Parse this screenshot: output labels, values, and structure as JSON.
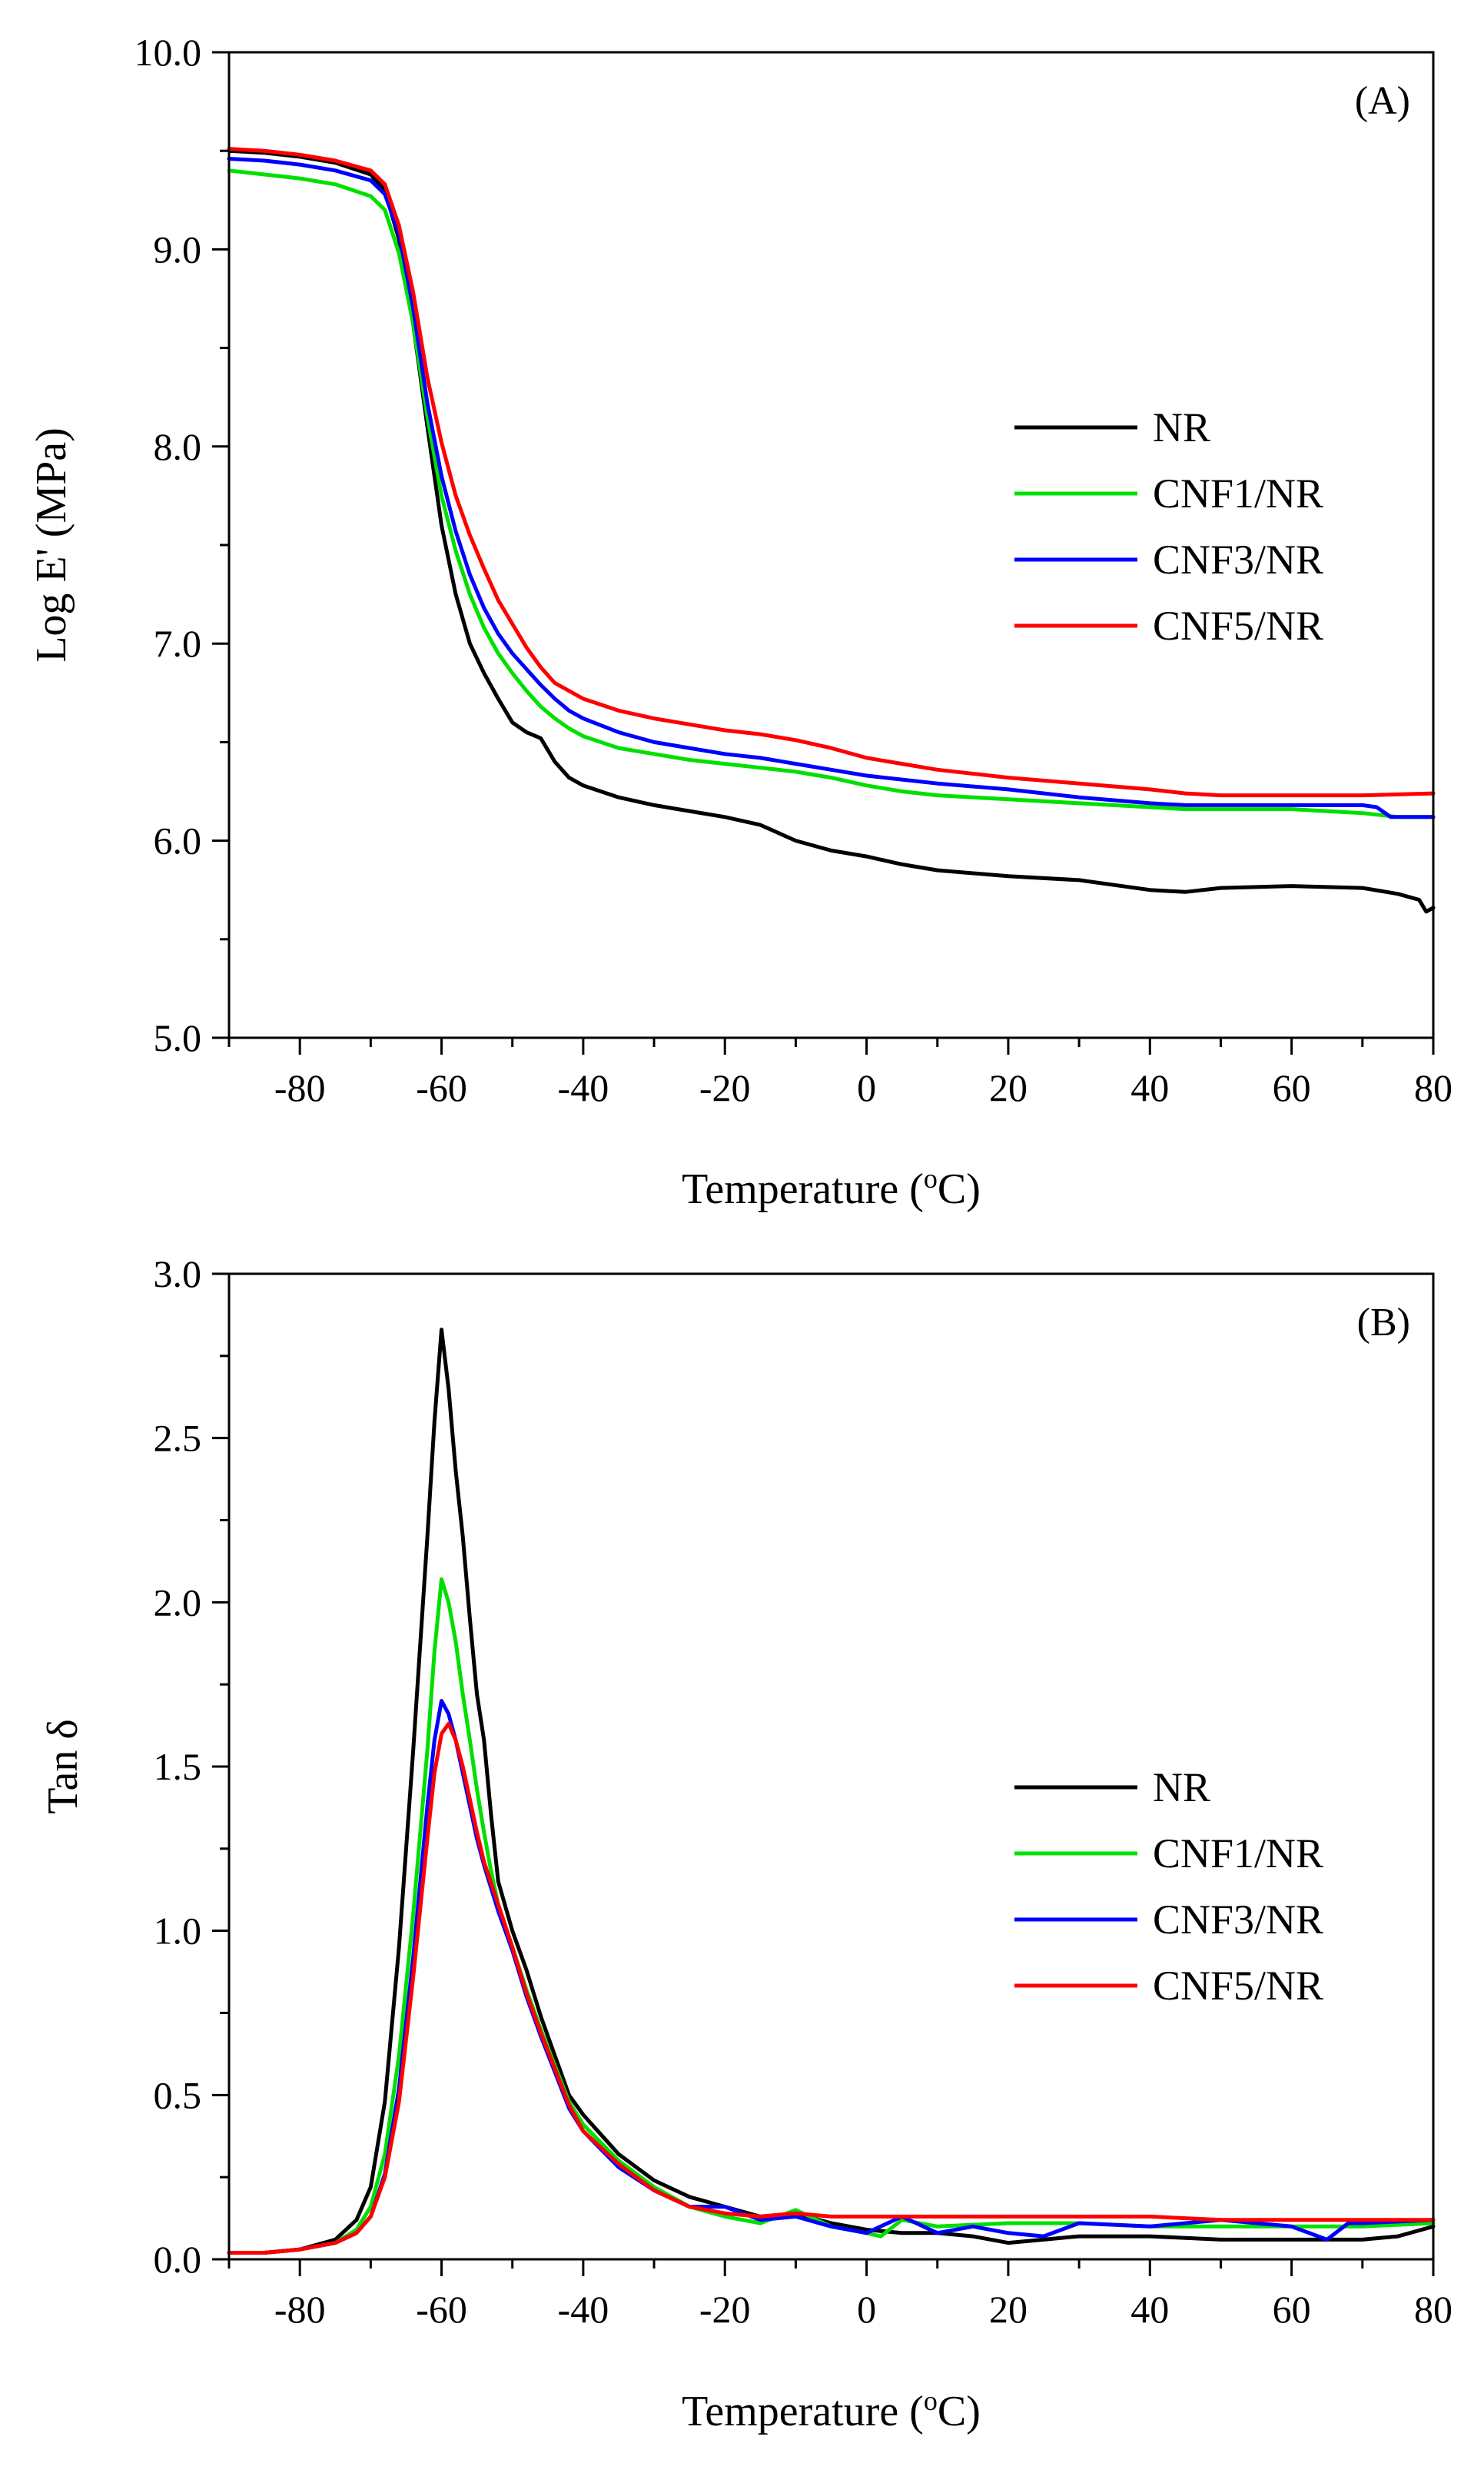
{
  "chart_data": [
    {
      "type": "line",
      "panel_label": "(A)",
      "xlabel": "Temperature",
      "xlabel_unit_prefix": " (",
      "xlabel_sup": "o",
      "xlabel_unit": "C)",
      "ylabel": "Log E' (MPa)",
      "xlim": [
        -90,
        80
      ],
      "ylim": [
        5.0,
        10.0
      ],
      "xticks": [
        -80,
        -60,
        -40,
        -20,
        0,
        20,
        40,
        60,
        80
      ],
      "yticks": [
        5.0,
        6.0,
        7.0,
        8.0,
        9.0,
        10.0
      ],
      "xtick_labels": [
        "-80",
        "-60",
        "-40",
        "-20",
        "0",
        "20",
        "40",
        "60",
        "80"
      ],
      "ytick_labels": [
        "5.0",
        "6.0",
        "7.0",
        "8.0",
        "9.0",
        "10.0"
      ],
      "legend_position": "right",
      "series": [
        {
          "name": "NR",
          "color": "#000000",
          "x": [
            -90,
            -85,
            -80,
            -75,
            -70,
            -68,
            -66,
            -64,
            -62,
            -60,
            -58,
            -56,
            -54,
            -52,
            -50,
            -48,
            -46,
            -44,
            -42,
            -40,
            -35,
            -30,
            -25,
            -20,
            -15,
            -10,
            -5,
            0,
            5,
            10,
            20,
            30,
            40,
            45,
            50,
            60,
            70,
            75,
            78,
            79,
            80
          ],
          "y": [
            9.5,
            9.49,
            9.47,
            9.44,
            9.38,
            9.3,
            9.05,
            8.62,
            8.1,
            7.6,
            7.25,
            7.0,
            6.85,
            6.72,
            6.6,
            6.55,
            6.52,
            6.4,
            6.32,
            6.28,
            6.22,
            6.18,
            6.15,
            6.12,
            6.08,
            6.0,
            5.95,
            5.92,
            5.88,
            5.85,
            5.82,
            5.8,
            5.75,
            5.74,
            5.76,
            5.77,
            5.76,
            5.73,
            5.7,
            5.64,
            5.66
          ]
        },
        {
          "name": "CNF1/NR",
          "color": "#00e000",
          "x": [
            -90,
            -85,
            -80,
            -75,
            -70,
            -68,
            -66,
            -64,
            -62,
            -60,
            -58,
            -56,
            -54,
            -52,
            -50,
            -48,
            -46,
            -44,
            -42,
            -40,
            -35,
            -30,
            -25,
            -20,
            -15,
            -10,
            -5,
            0,
            5,
            10,
            20,
            30,
            40,
            45,
            50,
            60,
            70,
            75,
            80
          ],
          "y": [
            9.4,
            9.38,
            9.36,
            9.33,
            9.27,
            9.2,
            8.98,
            8.62,
            8.15,
            7.75,
            7.47,
            7.25,
            7.08,
            6.95,
            6.85,
            6.76,
            6.68,
            6.62,
            6.57,
            6.53,
            6.47,
            6.44,
            6.41,
            6.39,
            6.37,
            6.35,
            6.32,
            6.28,
            6.25,
            6.23,
            6.21,
            6.19,
            6.17,
            6.16,
            6.16,
            6.16,
            6.14,
            6.12,
            6.12
          ]
        },
        {
          "name": "CNF3/NR",
          "color": "#0000ff",
          "x": [
            -90,
            -85,
            -80,
            -75,
            -70,
            -68,
            -66,
            -64,
            -62,
            -60,
            -58,
            -56,
            -54,
            -52,
            -50,
            -48,
            -46,
            -44,
            -42,
            -40,
            -35,
            -30,
            -25,
            -20,
            -15,
            -10,
            -5,
            0,
            5,
            10,
            20,
            30,
            40,
            45,
            50,
            60,
            70,
            72,
            74,
            80
          ],
          "y": [
            9.46,
            9.45,
            9.43,
            9.4,
            9.35,
            9.28,
            9.08,
            8.7,
            8.22,
            7.85,
            7.57,
            7.35,
            7.18,
            7.05,
            6.95,
            6.87,
            6.79,
            6.72,
            6.66,
            6.62,
            6.55,
            6.5,
            6.47,
            6.44,
            6.42,
            6.39,
            6.36,
            6.33,
            6.31,
            6.29,
            6.26,
            6.22,
            6.19,
            6.18,
            6.18,
            6.18,
            6.18,
            6.17,
            6.12,
            6.12
          ]
        },
        {
          "name": "CNF5/NR",
          "color": "#ff0000",
          "x": [
            -90,
            -85,
            -80,
            -75,
            -70,
            -68,
            -66,
            -64,
            -62,
            -60,
            -58,
            -56,
            -54,
            -52,
            -50,
            -48,
            -46,
            -44,
            -42,
            -40,
            -35,
            -30,
            -25,
            -20,
            -15,
            -10,
            -5,
            0,
            5,
            10,
            20,
            30,
            40,
            45,
            50,
            60,
            70,
            80
          ],
          "y": [
            9.51,
            9.5,
            9.48,
            9.45,
            9.4,
            9.33,
            9.12,
            8.78,
            8.35,
            8.02,
            7.75,
            7.55,
            7.38,
            7.22,
            7.1,
            6.98,
            6.88,
            6.8,
            6.76,
            6.72,
            6.66,
            6.62,
            6.59,
            6.56,
            6.54,
            6.51,
            6.47,
            6.42,
            6.39,
            6.36,
            6.32,
            6.29,
            6.26,
            6.24,
            6.23,
            6.23,
            6.23,
            6.24
          ]
        }
      ]
    },
    {
      "type": "line",
      "panel_label": "(B)",
      "xlabel": "Temperature",
      "xlabel_unit_prefix": " (",
      "xlabel_sup": "o",
      "xlabel_unit": "C)",
      "ylabel": "Tan δ",
      "xlim": [
        -90,
        80
      ],
      "ylim": [
        0.0,
        3.0
      ],
      "xticks": [
        -80,
        -60,
        -40,
        -20,
        0,
        20,
        40,
        60,
        80
      ],
      "yticks": [
        0.0,
        0.5,
        1.0,
        1.5,
        2.0,
        2.5,
        3.0
      ],
      "xtick_labels": [
        "-80",
        "-60",
        "-40",
        "-20",
        "0",
        "20",
        "40",
        "60",
        "80"
      ],
      "ytick_labels": [
        "0.0",
        "0.5",
        "1.0",
        "1.5",
        "2.0",
        "2.5",
        "3.0"
      ],
      "legend_position": "right",
      "series": [
        {
          "name": "NR",
          "color": "#000000",
          "x": [
            -90,
            -85,
            -80,
            -75,
            -72,
            -70,
            -68,
            -66,
            -64,
            -62,
            -61,
            -60,
            -59,
            -58,
            -57,
            -56,
            -55,
            -54,
            -53,
            -52,
            -50,
            -48,
            -46,
            -44,
            -42,
            -40,
            -35,
            -30,
            -25,
            -20,
            -15,
            -10,
            -5,
            0,
            5,
            10,
            15,
            20,
            25,
            30,
            40,
            50,
            60,
            70,
            75,
            80
          ],
          "y": [
            0.02,
            0.02,
            0.03,
            0.06,
            0.12,
            0.22,
            0.48,
            0.95,
            1.55,
            2.2,
            2.55,
            2.83,
            2.65,
            2.4,
            2.2,
            1.95,
            1.72,
            1.58,
            1.35,
            1.15,
            1.0,
            0.88,
            0.74,
            0.62,
            0.5,
            0.44,
            0.32,
            0.24,
            0.19,
            0.16,
            0.13,
            0.14,
            0.11,
            0.09,
            0.08,
            0.08,
            0.07,
            0.05,
            0.06,
            0.07,
            0.07,
            0.06,
            0.06,
            0.06,
            0.07,
            0.1
          ]
        },
        {
          "name": "CNF1/NR",
          "color": "#00e000",
          "x": [
            -90,
            -85,
            -80,
            -75,
            -72,
            -70,
            -68,
            -66,
            -64,
            -62,
            -61,
            -60,
            -59,
            -58,
            -57,
            -56,
            -55,
            -54,
            -53,
            -52,
            -50,
            -48,
            -46,
            -44,
            -42,
            -40,
            -35,
            -30,
            -25,
            -20,
            -15,
            -10,
            -5,
            0,
            2,
            5,
            10,
            20,
            30,
            40,
            50,
            60,
            70,
            80
          ],
          "y": [
            0.02,
            0.02,
            0.03,
            0.05,
            0.09,
            0.16,
            0.32,
            0.62,
            1.05,
            1.55,
            1.85,
            2.07,
            2.0,
            1.88,
            1.72,
            1.58,
            1.43,
            1.3,
            1.18,
            1.08,
            0.95,
            0.82,
            0.7,
            0.59,
            0.48,
            0.41,
            0.3,
            0.22,
            0.16,
            0.13,
            0.11,
            0.15,
            0.1,
            0.08,
            0.07,
            0.12,
            0.1,
            0.11,
            0.11,
            0.1,
            0.1,
            0.1,
            0.1,
            0.11
          ]
        },
        {
          "name": "CNF3/NR",
          "color": "#0000ff",
          "x": [
            -90,
            -85,
            -80,
            -75,
            -72,
            -70,
            -68,
            -66,
            -64,
            -62,
            -61,
            -60,
            -59,
            -58,
            -57,
            -56,
            -55,
            -54,
            -52,
            -50,
            -48,
            -46,
            -44,
            -42,
            -40,
            -35,
            -30,
            -25,
            -20,
            -15,
            -10,
            -5,
            0,
            5,
            10,
            15,
            20,
            25,
            30,
            40,
            50,
            60,
            65,
            68,
            70,
            80
          ],
          "y": [
            0.02,
            0.02,
            0.03,
            0.05,
            0.08,
            0.13,
            0.26,
            0.52,
            0.92,
            1.38,
            1.58,
            1.7,
            1.66,
            1.58,
            1.48,
            1.38,
            1.28,
            1.2,
            1.06,
            0.94,
            0.8,
            0.68,
            0.57,
            0.46,
            0.39,
            0.28,
            0.21,
            0.16,
            0.16,
            0.12,
            0.13,
            0.1,
            0.08,
            0.13,
            0.08,
            0.1,
            0.08,
            0.07,
            0.11,
            0.1,
            0.12,
            0.1,
            0.06,
            0.11,
            0.11,
            0.12
          ]
        },
        {
          "name": "CNF5/NR",
          "color": "#ff0000",
          "x": [
            -90,
            -85,
            -80,
            -75,
            -72,
            -70,
            -68,
            -66,
            -64,
            -62,
            -61,
            -60,
            -59,
            -58,
            -57,
            -56,
            -55,
            -54,
            -52,
            -50,
            -48,
            -46,
            -44,
            -42,
            -40,
            -35,
            -30,
            -25,
            -20,
            -15,
            -10,
            -5,
            0,
            5,
            10,
            20,
            30,
            40,
            50,
            60,
            70,
            80
          ],
          "y": [
            0.02,
            0.02,
            0.03,
            0.05,
            0.08,
            0.13,
            0.25,
            0.48,
            0.86,
            1.28,
            1.48,
            1.6,
            1.63,
            1.58,
            1.5,
            1.4,
            1.3,
            1.21,
            1.08,
            0.95,
            0.81,
            0.69,
            0.58,
            0.47,
            0.39,
            0.29,
            0.21,
            0.16,
            0.14,
            0.13,
            0.14,
            0.13,
            0.13,
            0.13,
            0.13,
            0.13,
            0.13,
            0.13,
            0.12,
            0.12,
            0.12,
            0.12
          ]
        }
      ]
    }
  ]
}
